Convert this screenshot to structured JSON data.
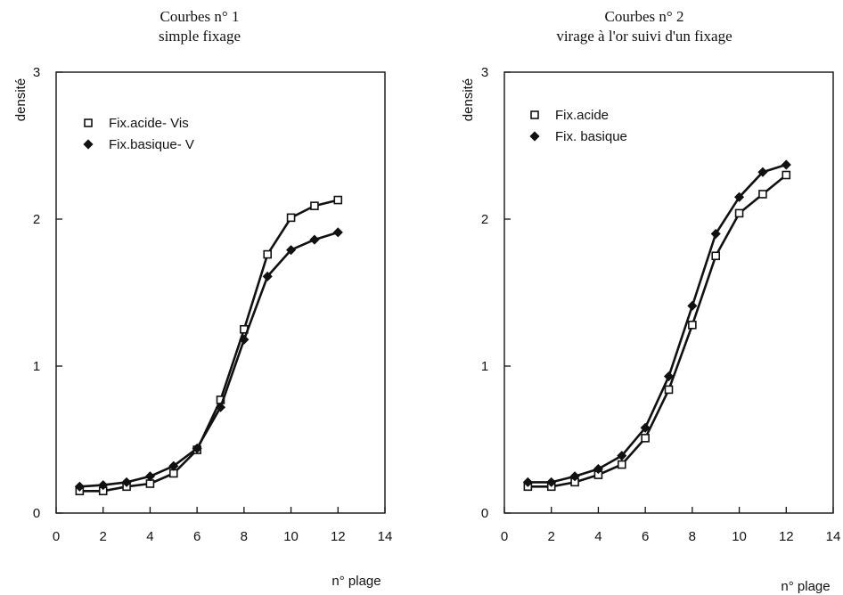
{
  "chart_data": [
    {
      "type": "line",
      "title": "Courbes n° 1",
      "subtitle": "simple fixage",
      "xlabel": "n° plage",
      "ylabel": "densité",
      "xlim": [
        0,
        14
      ],
      "ylim": [
        0,
        3
      ],
      "xticks": [
        "0",
        "2",
        "4",
        "6",
        "8",
        "10",
        "12",
        "14"
      ],
      "yticks": [
        "0",
        "1",
        "2",
        "3"
      ],
      "grid": false,
      "legend_position": "top-left",
      "series": [
        {
          "name": "Fix.acide- Vis",
          "marker": "open-square",
          "x": [
            1,
            2,
            3,
            4,
            5,
            6,
            7,
            8,
            9,
            10,
            11,
            12
          ],
          "y": [
            0.15,
            0.15,
            0.18,
            0.2,
            0.27,
            0.43,
            0.77,
            1.25,
            1.76,
            2.01,
            2.09,
            2.13
          ]
        },
        {
          "name": "Fix.basique- V",
          "marker": "filled-diamond",
          "x": [
            1,
            2,
            3,
            4,
            5,
            6,
            7,
            8,
            9,
            10,
            11,
            12
          ],
          "y": [
            0.18,
            0.19,
            0.21,
            0.25,
            0.32,
            0.44,
            0.72,
            1.18,
            1.61,
            1.79,
            1.86,
            1.91
          ]
        }
      ]
    },
    {
      "type": "line",
      "title": "Courbes n° 2",
      "subtitle": "virage à l'or suivi d'un fixage",
      "xlabel": "n° plage",
      "ylabel": "densité",
      "xlim": [
        0,
        14
      ],
      "ylim": [
        0,
        3
      ],
      "xticks": [
        "0",
        "2",
        "4",
        "6",
        "8",
        "10",
        "12",
        "14"
      ],
      "yticks": [
        "0",
        "1",
        "2",
        "3"
      ],
      "grid": false,
      "legend_position": "top-left",
      "series": [
        {
          "name": "Fix.acide",
          "marker": "open-square",
          "x": [
            1,
            2,
            3,
            4,
            5,
            6,
            7,
            8,
            9,
            10,
            11,
            12
          ],
          "y": [
            0.18,
            0.18,
            0.21,
            0.26,
            0.33,
            0.51,
            0.84,
            1.28,
            1.75,
            2.04,
            2.17,
            2.3
          ]
        },
        {
          "name": "Fix. basique",
          "marker": "filled-diamond",
          "x": [
            1,
            2,
            3,
            4,
            5,
            6,
            7,
            8,
            9,
            10,
            11,
            12
          ],
          "y": [
            0.21,
            0.21,
            0.25,
            0.3,
            0.39,
            0.58,
            0.93,
            1.41,
            1.9,
            2.15,
            2.32,
            2.37
          ]
        }
      ]
    }
  ]
}
